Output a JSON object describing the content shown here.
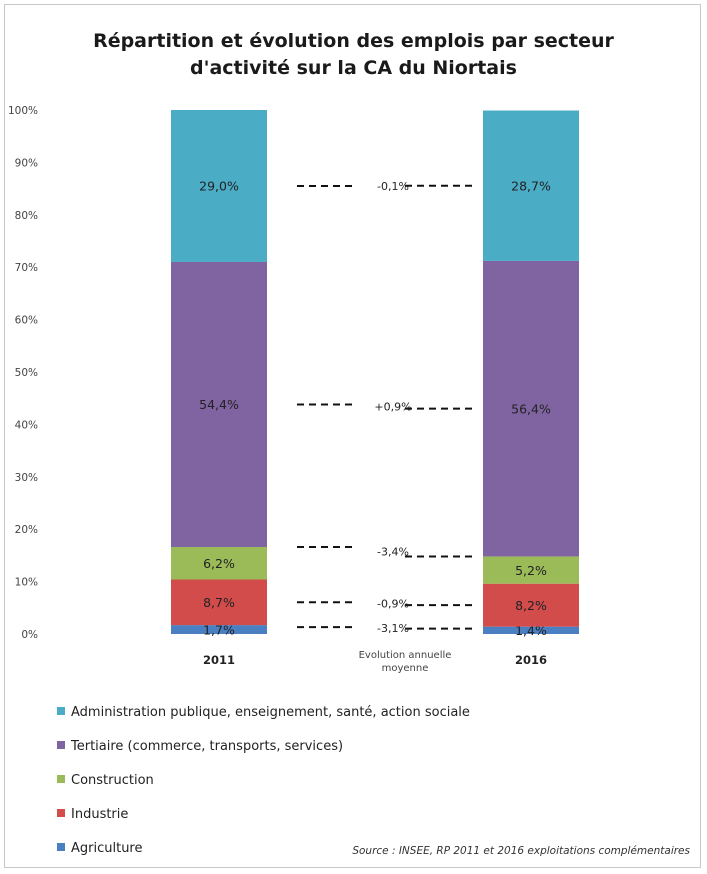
{
  "chart_data": {
    "type": "bar",
    "stacked": true,
    "title": "Répartition et évolution des emplois par secteur d'activité sur la CA du Niortais",
    "title_lines": [
      "Répartition et évolution des emplois par secteur",
      "d'activité sur la CA du Niortais"
    ],
    "categories": [
      "2011",
      "2016"
    ],
    "ylim": [
      0,
      100
    ],
    "y_ticks": [
      "0%",
      "10%",
      "20%",
      "30%",
      "40%",
      "50%",
      "60%",
      "70%",
      "80%",
      "90%",
      "100%"
    ],
    "series": [
      {
        "name": "Agriculture",
        "values": [
          1.7,
          1.4
        ],
        "labels": [
          "1,7%",
          "1,4%"
        ],
        "color": "#4a7fc2"
      },
      {
        "name": "Industrie",
        "values": [
          8.7,
          8.2
        ],
        "labels": [
          "8,7%",
          "8,2%"
        ],
        "color": "#d24c4c"
      },
      {
        "name": "Construction",
        "values": [
          6.2,
          5.2
        ],
        "labels": [
          "6,2%",
          "5,2%"
        ],
        "color": "#9bbb59"
      },
      {
        "name": "Tertiaire (commerce, transports, services)",
        "values": [
          54.4,
          56.4
        ],
        "labels": [
          "54,4%",
          "56,4%"
        ],
        "color": "#8064a2"
      },
      {
        "name": "Administration publique, enseignement, santé, action sociale",
        "values": [
          29.0,
          28.7
        ],
        "labels": [
          "29,0%",
          "28,7%"
        ],
        "color": "#4bacc6"
      }
    ],
    "middle_category": "Evolution annuelle moyenne",
    "middle_category_lines": [
      "Evolution annuelle",
      "moyenne"
    ],
    "annual_evolution": [
      "-3,1%",
      "-0,9%",
      "-3,4%",
      "+0,9%",
      "-0,1%"
    ],
    "legend_position": "bottom-left",
    "legend_order": [
      "Administration publique, enseignement, santé, action sociale",
      "Tertiaire (commerce, transports, services)",
      "Construction",
      "Industrie",
      "Agriculture"
    ],
    "grid": false
  },
  "source": "Source : INSEE, RP 2011 et 2016 exploitations complémentaires"
}
